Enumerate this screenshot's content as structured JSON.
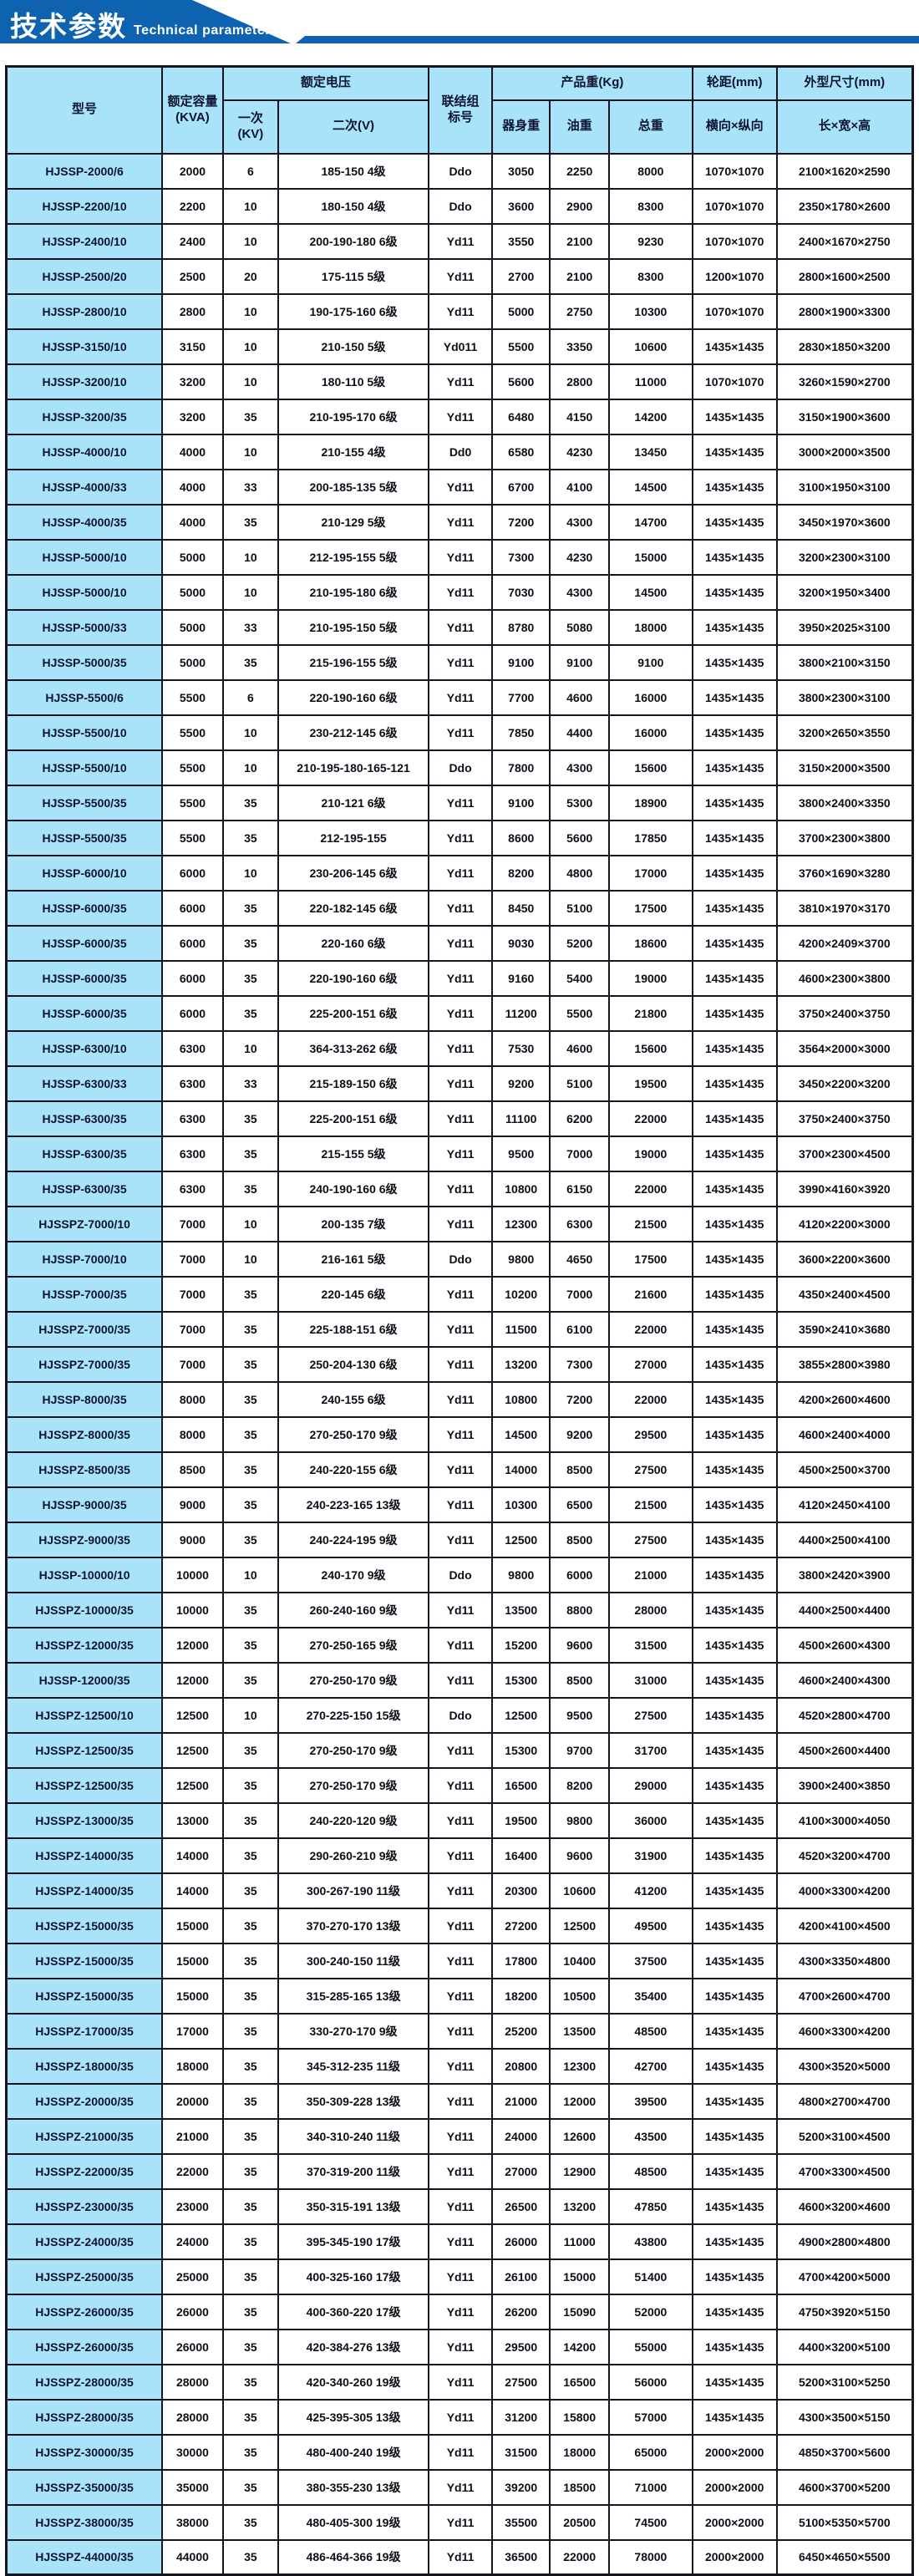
{
  "banner": {
    "title_zh": "技术参数",
    "title_en": "Technical parameter"
  },
  "colors": {
    "banner_blue": "#0e63b0",
    "header_fill": "#a9e3fa",
    "model_fill": "#a9e3fa",
    "grid_border": "#15151f"
  },
  "table": {
    "header": {
      "model": "型号",
      "capacity_line1": "额定容量",
      "capacity_line2": "(KVA)",
      "voltage_group": "额定电压",
      "primary_line1": "一次",
      "primary_line2": "(KV)",
      "secondary": "二次(V)",
      "connection_line1": "联结组",
      "connection_line2": "标号",
      "weight_group": "产品重(Kg)",
      "weight_body": "器身重",
      "weight_oil": "油重",
      "weight_total": "总重",
      "wheelbase_group": "轮距(mm)",
      "wheelbase_sub": "横向×纵向",
      "dimensions_group": "外型尺寸(mm)",
      "dimensions_sub": "长×宽×高"
    },
    "rows": [
      [
        "HJSSP-2000/6",
        "2000",
        "6",
        "185-150 4级",
        "Ddo",
        "3050",
        "2250",
        "8000",
        "1070×1070",
        "2100×1620×2590"
      ],
      [
        "HJSSP-2200/10",
        "2200",
        "10",
        "180-150 4级",
        "Ddo",
        "3600",
        "2900",
        "8300",
        "1070×1070",
        "2350×1780×2600"
      ],
      [
        "HJSSP-2400/10",
        "2400",
        "10",
        "200-190-180 6级",
        "Yd11",
        "3550",
        "2100",
        "9230",
        "1070×1070",
        "2400×1670×2750"
      ],
      [
        "HJSSP-2500/20",
        "2500",
        "20",
        "175-115 5级",
        "Yd11",
        "2700",
        "2100",
        "8300",
        "1200×1070",
        "2800×1600×2500"
      ],
      [
        "HJSSP-2800/10",
        "2800",
        "10",
        "190-175-160 6级",
        "Yd11",
        "5000",
        "2750",
        "10300",
        "1070×1070",
        "2800×1900×3300"
      ],
      [
        "HJSSP-3150/10",
        "3150",
        "10",
        "210-150 5级",
        "Yd011",
        "5500",
        "3350",
        "10600",
        "1435×1435",
        "2830×1850×3200"
      ],
      [
        "HJSSP-3200/10",
        "3200",
        "10",
        "180-110 5级",
        "Yd11",
        "5600",
        "2800",
        "11000",
        "1070×1070",
        "3260×1590×2700"
      ],
      [
        "HJSSP-3200/35",
        "3200",
        "35",
        "210-195-170 6级",
        "Yd11",
        "6480",
        "4150",
        "14200",
        "1435×1435",
        "3150×1900×3600"
      ],
      [
        "HJSSP-4000/10",
        "4000",
        "10",
        "210-155 4级",
        "Dd0",
        "6580",
        "4230",
        "13450",
        "1435×1435",
        "3000×2000×3500"
      ],
      [
        "HJSSP-4000/33",
        "4000",
        "33",
        "200-185-135 5级",
        "Yd11",
        "6700",
        "4100",
        "14500",
        "1435×1435",
        "3100×1950×3100"
      ],
      [
        "HJSSP-4000/35",
        "4000",
        "35",
        "210-129 5级",
        "Yd11",
        "7200",
        "4300",
        "14700",
        "1435×1435",
        "3450×1970×3600"
      ],
      [
        "HJSSP-5000/10",
        "5000",
        "10",
        "212-195-155 5级",
        "Yd11",
        "7300",
        "4230",
        "15000",
        "1435×1435",
        "3200×2300×3100"
      ],
      [
        "HJSSP-5000/10",
        "5000",
        "10",
        "210-195-180 6级",
        "Yd11",
        "7030",
        "4300",
        "14500",
        "1435×1435",
        "3200×1950×3400"
      ],
      [
        "HJSSP-5000/33",
        "5000",
        "33",
        "210-195-150 5级",
        "Yd11",
        "8780",
        "5080",
        "18000",
        "1435×1435",
        "3950×2025×3100"
      ],
      [
        "HJSSP-5000/35",
        "5000",
        "35",
        "215-196-155 5级",
        "Yd11",
        "9100",
        "9100",
        "9100",
        "1435×1435",
        "3800×2100×3150"
      ],
      [
        "HJSSP-5500/6",
        "5500",
        "6",
        "220-190-160 6级",
        "Yd11",
        "7700",
        "4600",
        "16000",
        "1435×1435",
        "3800×2300×3100"
      ],
      [
        "HJSSP-5500/10",
        "5500",
        "10",
        "230-212-145 6级",
        "Yd11",
        "7850",
        "4400",
        "16000",
        "1435×1435",
        "3200×2650×3550"
      ],
      [
        "HJSSP-5500/10",
        "5500",
        "10",
        "210-195-180-165-121",
        "Ddo",
        "7800",
        "4300",
        "15600",
        "1435×1435",
        "3150×2000×3500"
      ],
      [
        "HJSSP-5500/35",
        "5500",
        "35",
        "210-121 6级",
        "Yd11",
        "9100",
        "5300",
        "18900",
        "1435×1435",
        "3800×2400×3350"
      ],
      [
        "HJSSP-5500/35",
        "5500",
        "35",
        "212-195-155",
        "Yd11",
        "8600",
        "5600",
        "17850",
        "1435×1435",
        "3700×2300×3800"
      ],
      [
        "HJSSP-6000/10",
        "6000",
        "10",
        "230-206-145 6级",
        "Yd11",
        "8200",
        "4800",
        "17000",
        "1435×1435",
        "3760×1690×3280"
      ],
      [
        "HJSSP-6000/35",
        "6000",
        "35",
        "220-182-145 6级",
        "Yd11",
        "8450",
        "5100",
        "17500",
        "1435×1435",
        "3810×1970×3170"
      ],
      [
        "HJSSP-6000/35",
        "6000",
        "35",
        "220-160 6级",
        "Yd11",
        "9030",
        "5200",
        "18600",
        "1435×1435",
        "4200×2409×3700"
      ],
      [
        "HJSSP-6000/35",
        "6000",
        "35",
        "220-190-160 6级",
        "Yd11",
        "9160",
        "5400",
        "19000",
        "1435×1435",
        "4600×2300×3800"
      ],
      [
        "HJSSP-6000/35",
        "6000",
        "35",
        "225-200-151 6级",
        "Yd11",
        "11200",
        "5500",
        "21800",
        "1435×1435",
        "3750×2400×3750"
      ],
      [
        "HJSSP-6300/10",
        "6300",
        "10",
        "364-313-262 6级",
        "Yd11",
        "7530",
        "4600",
        "15600",
        "1435×1435",
        "3564×2000×3000"
      ],
      [
        "HJSSP-6300/33",
        "6300",
        "33",
        "215-189-150 6级",
        "Yd11",
        "9200",
        "5100",
        "19500",
        "1435×1435",
        "3450×2200×3200"
      ],
      [
        "HJSSP-6300/35",
        "6300",
        "35",
        "225-200-151 6级",
        "Yd11",
        "11100",
        "6200",
        "22000",
        "1435×1435",
        "3750×2400×3750"
      ],
      [
        "HJSSP-6300/35",
        "6300",
        "35",
        "215-155 5级",
        "Yd11",
        "9500",
        "7000",
        "19000",
        "1435×1435",
        "3700×2300×4500"
      ],
      [
        "HJSSP-6300/35",
        "6300",
        "35",
        "240-190-160 6级",
        "Yd11",
        "10800",
        "6150",
        "22000",
        "1435×1435",
        "3990×4160×3920"
      ],
      [
        "HJSSPZ-7000/10",
        "7000",
        "10",
        "200-135 7级",
        "Yd11",
        "12300",
        "6300",
        "21500",
        "1435×1435",
        "4120×2200×3000"
      ],
      [
        "HJSSP-7000/10",
        "7000",
        "10",
        "216-161 5级",
        "Ddo",
        "9800",
        "4650",
        "17500",
        "1435×1435",
        "3600×2200×3600"
      ],
      [
        "HJSSP-7000/35",
        "7000",
        "35",
        "220-145 6级",
        "Yd11",
        "10200",
        "7000",
        "21600",
        "1435×1435",
        "4350×2400×4500"
      ],
      [
        "HJSSPZ-7000/35",
        "7000",
        "35",
        "225-188-151 6级",
        "Yd11",
        "11500",
        "6100",
        "22000",
        "1435×1435",
        "3590×2410×3680"
      ],
      [
        "HJSSPZ-7000/35",
        "7000",
        "35",
        "250-204-130 6级",
        "Yd11",
        "13200",
        "7300",
        "27000",
        "1435×1435",
        "3855×2800×3980"
      ],
      [
        "HJSSP-8000/35",
        "8000",
        "35",
        "240-155 6级",
        "Yd11",
        "10800",
        "7200",
        "22000",
        "1435×1435",
        "4200×2600×4600"
      ],
      [
        "HJSSPZ-8000/35",
        "8000",
        "35",
        "270-250-170 9级",
        "Yd11",
        "14500",
        "9200",
        "29500",
        "1435×1435",
        "4600×2400×4000"
      ],
      [
        "HJSSPZ-8500/35",
        "8500",
        "35",
        "240-220-155 6级",
        "Yd11",
        "14000",
        "8500",
        "27500",
        "1435×1435",
        "4500×2500×3700"
      ],
      [
        "HJSSP-9000/35",
        "9000",
        "35",
        "240-223-165 13级",
        "Yd11",
        "10300",
        "6500",
        "21500",
        "1435×1435",
        "4120×2450×4100"
      ],
      [
        "HJSSPZ-9000/35",
        "9000",
        "35",
        "240-224-195 9级",
        "Yd11",
        "12500",
        "8500",
        "27500",
        "1435×1435",
        "4400×2500×4100"
      ],
      [
        "HJSSP-10000/10",
        "10000",
        "10",
        "240-170 9级",
        "Ddo",
        "9800",
        "6000",
        "21000",
        "1435×1435",
        "3800×2420×3900"
      ],
      [
        "HJSSPZ-10000/35",
        "10000",
        "35",
        "260-240-160 9级",
        "Yd11",
        "13500",
        "8800",
        "28000",
        "1435×1435",
        "4400×2500×4400"
      ],
      [
        "HJSSPZ-12000/35",
        "12000",
        "35",
        "270-250-165 9级",
        "Yd11",
        "15200",
        "9600",
        "31500",
        "1435×1435",
        "4500×2600×4300"
      ],
      [
        "HJSSP-12000/35",
        "12000",
        "35",
        "270-250-170 9级",
        "Yd11",
        "15300",
        "8500",
        "31000",
        "1435×1435",
        "4600×2400×4300"
      ],
      [
        "HJSSPZ-12500/10",
        "12500",
        "10",
        "270-225-150 15级",
        "Ddo",
        "12500",
        "9500",
        "27500",
        "1435×1435",
        "4520×2800×4700"
      ],
      [
        "HJSSPZ-12500/35",
        "12500",
        "35",
        "270-250-170 9级",
        "Yd11",
        "15300",
        "9700",
        "31700",
        "1435×1435",
        "4500×2600×4400"
      ],
      [
        "HJSSPZ-12500/35",
        "12500",
        "35",
        "270-250-170 9级",
        "Yd11",
        "16500",
        "8200",
        "29000",
        "1435×1435",
        "3900×2400×3850"
      ],
      [
        "HJSSPZ-13000/35",
        "13000",
        "35",
        "240-220-120 9级",
        "Yd11",
        "19500",
        "9800",
        "36000",
        "1435×1435",
        "4100×3000×4050"
      ],
      [
        "HJSSPZ-14000/35",
        "14000",
        "35",
        "290-260-210 9级",
        "Yd11",
        "16400",
        "9600",
        "31900",
        "1435×1435",
        "4520×3200×4700"
      ],
      [
        "HJSSPZ-14000/35",
        "14000",
        "35",
        "300-267-190 11级",
        "Yd11",
        "20300",
        "10600",
        "41200",
        "1435×1435",
        "4000×3300×4200"
      ],
      [
        "HJSSPZ-15000/35",
        "15000",
        "35",
        "370-270-170 13级",
        "Yd11",
        "27200",
        "12500",
        "49500",
        "1435×1435",
        "4200×4100×4500"
      ],
      [
        "HJSSPZ-15000/35",
        "15000",
        "35",
        "300-240-150 11级",
        "Yd11",
        "17800",
        "10400",
        "37500",
        "1435×1435",
        "4300×3350×4800"
      ],
      [
        "HJSSPZ-15000/35",
        "15000",
        "35",
        "315-285-165 13级",
        "Yd11",
        "18200",
        "10500",
        "35400",
        "1435×1435",
        "4700×2600×4700"
      ],
      [
        "HJSSPZ-17000/35",
        "17000",
        "35",
        "330-270-170 9级",
        "Yd11",
        "25200",
        "13500",
        "48500",
        "1435×1435",
        "4600×3300×4200"
      ],
      [
        "HJSSPZ-18000/35",
        "18000",
        "35",
        "345-312-235 11级",
        "Yd11",
        "20800",
        "12300",
        "42700",
        "1435×1435",
        "4300×3520×5000"
      ],
      [
        "HJSSPZ-20000/35",
        "20000",
        "35",
        "350-309-228 13级",
        "Yd11",
        "21000",
        "12000",
        "39500",
        "1435×1435",
        "4800×2700×4700"
      ],
      [
        "HJSSPZ-21000/35",
        "21000",
        "35",
        "340-310-240 11级",
        "Yd11",
        "24000",
        "12600",
        "43500",
        "1435×1435",
        "5200×3100×4500"
      ],
      [
        "HJSSPZ-22000/35",
        "22000",
        "35",
        "370-319-200 11级",
        "Yd11",
        "27000",
        "12900",
        "48500",
        "1435×1435",
        "4700×3300×4500"
      ],
      [
        "HJSSPZ-23000/35",
        "23000",
        "35",
        "350-315-191 13级",
        "Yd11",
        "26500",
        "13200",
        "47850",
        "1435×1435",
        "4600×3200×4600"
      ],
      [
        "HJSSPZ-24000/35",
        "24000",
        "35",
        "395-345-190 17级",
        "Yd11",
        "26000",
        "11000",
        "43800",
        "1435×1435",
        "4900×2800×4800"
      ],
      [
        "HJSSPZ-25000/35",
        "25000",
        "35",
        "400-325-160 17级",
        "Yd11",
        "26100",
        "15000",
        "51400",
        "1435×1435",
        "4700×4200×5000"
      ],
      [
        "HJSSPZ-26000/35",
        "26000",
        "35",
        "400-360-220 17级",
        "Yd11",
        "26200",
        "15090",
        "52000",
        "1435×1435",
        "4750×3920×5150"
      ],
      [
        "HJSSPZ-26000/35",
        "26000",
        "35",
        "420-384-276 13级",
        "Yd11",
        "29500",
        "14200",
        "55000",
        "1435×1435",
        "4400×3200×5100"
      ],
      [
        "HJSSPZ-28000/35",
        "28000",
        "35",
        "420-340-260 19级",
        "Yd11",
        "27500",
        "16500",
        "56000",
        "1435×1435",
        "5200×3100×5250"
      ],
      [
        "HJSSPZ-28000/35",
        "28000",
        "35",
        "425-395-305 13级",
        "Yd11",
        "31200",
        "15800",
        "57000",
        "1435×1435",
        "4300×3500×5150"
      ],
      [
        "HJSSPZ-30000/35",
        "30000",
        "35",
        "480-400-240 19级",
        "Yd11",
        "31500",
        "18000",
        "65000",
        "2000×2000",
        "4850×3700×5600"
      ],
      [
        "HJSSPZ-35000/35",
        "35000",
        "35",
        "380-355-230 13级",
        "Yd11",
        "39200",
        "18500",
        "71000",
        "2000×2000",
        "4600×3700×5200"
      ],
      [
        "HJSSPZ-38000/35",
        "38000",
        "35",
        "480-405-300 19级",
        "Yd11",
        "35500",
        "20500",
        "74500",
        "2000×2000",
        "5100×5350×5700"
      ],
      [
        "HJSSPZ-44000/35",
        "44000",
        "35",
        "486-464-366 19级",
        "Yd11",
        "36500",
        "22000",
        "78000",
        "2000×2000",
        "6450×4650×5500"
      ]
    ]
  }
}
